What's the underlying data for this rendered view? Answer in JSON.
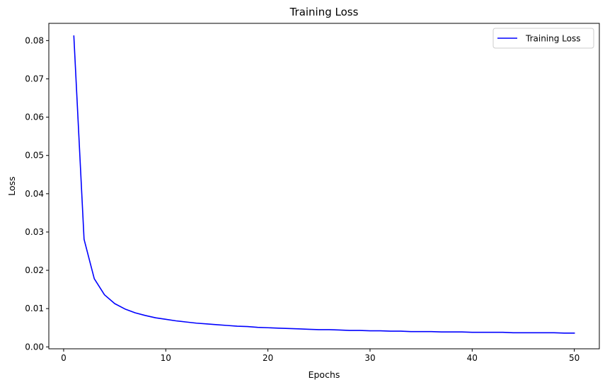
{
  "chart_data": {
    "type": "line",
    "title": "Training Loss",
    "xlabel": "Epochs",
    "ylabel": "Loss",
    "xlim": [
      -1.45,
      52.45
    ],
    "ylim": [
      -0.0005,
      0.0845
    ],
    "x_ticks": [
      0,
      10,
      20,
      30,
      40,
      50
    ],
    "x_tick_labels": [
      "0",
      "10",
      "20",
      "30",
      "40",
      "50"
    ],
    "y_ticks": [
      0.0,
      0.01,
      0.02,
      0.03,
      0.04,
      0.05,
      0.06,
      0.07,
      0.08
    ],
    "y_tick_labels": [
      "0.00",
      "0.01",
      "0.02",
      "0.03",
      "0.04",
      "0.05",
      "0.06",
      "0.07",
      "0.08"
    ],
    "grid": false,
    "legend": {
      "position": "top-right",
      "entries": [
        "Training Loss"
      ]
    },
    "series": [
      {
        "name": "Training Loss",
        "color": "#0000ff",
        "x": [
          1,
          2,
          3,
          4,
          5,
          6,
          7,
          8,
          9,
          10,
          11,
          12,
          13,
          14,
          15,
          16,
          17,
          18,
          19,
          20,
          21,
          22,
          23,
          24,
          25,
          26,
          27,
          28,
          29,
          30,
          31,
          32,
          33,
          34,
          35,
          36,
          37,
          38,
          39,
          40,
          41,
          42,
          43,
          44,
          45,
          46,
          47,
          48,
          49,
          50
        ],
        "values": [
          0.0812,
          0.0281,
          0.0178,
          0.0136,
          0.0113,
          0.0099,
          0.0089,
          0.0082,
          0.0076,
          0.0072,
          0.0068,
          0.0065,
          0.0062,
          0.006,
          0.0058,
          0.0056,
          0.0054,
          0.0053,
          0.0051,
          0.005,
          0.0049,
          0.0048,
          0.0047,
          0.0046,
          0.0045,
          0.0045,
          0.0044,
          0.0043,
          0.0043,
          0.0042,
          0.0042,
          0.0041,
          0.0041,
          0.004,
          0.004,
          0.004,
          0.0039,
          0.0039,
          0.0039,
          0.0038,
          0.0038,
          0.0038,
          0.0038,
          0.0037,
          0.0037,
          0.0037,
          0.0037,
          0.0037,
          0.0036,
          0.0036
        ]
      }
    ]
  }
}
